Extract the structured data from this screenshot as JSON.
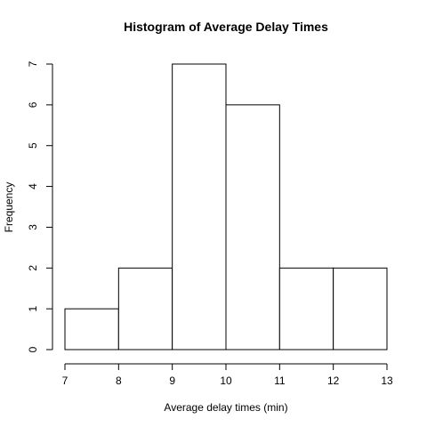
{
  "chart_data": {
    "type": "bar",
    "title": "Histogram of Average Delay Times",
    "xlabel": "Average delay times (min)",
    "ylabel": "Frequency",
    "bins": [
      {
        "start": 7,
        "end": 8,
        "count": 1
      },
      {
        "start": 8,
        "end": 9,
        "count": 2
      },
      {
        "start": 9,
        "end": 10,
        "count": 7
      },
      {
        "start": 10,
        "end": 11,
        "count": 6
      },
      {
        "start": 11,
        "end": 12,
        "count": 2
      },
      {
        "start": 12,
        "end": 13,
        "count": 2
      }
    ],
    "xlim": [
      7,
      13
    ],
    "ylim": [
      0,
      7
    ],
    "x_ticks": [
      "7",
      "8",
      "9",
      "10",
      "11",
      "12",
      "13"
    ],
    "y_ticks": [
      "0",
      "1",
      "2",
      "3",
      "4",
      "5",
      "6",
      "7"
    ],
    "grid": false,
    "colors": {
      "bar_fill": "#ffffff",
      "bar_stroke": "#000000"
    }
  }
}
